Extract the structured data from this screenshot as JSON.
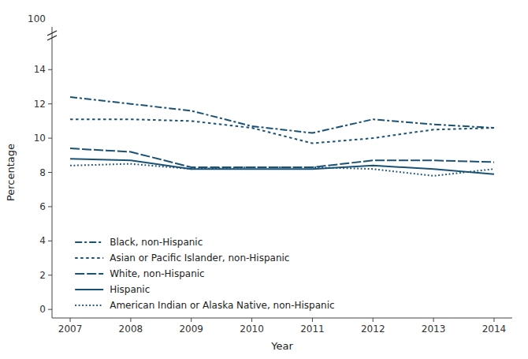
{
  "chart_data": {
    "type": "line",
    "xlabel": "Year",
    "ylabel": "Percentage",
    "x": [
      2007,
      2008,
      2009,
      2010,
      2011,
      2012,
      2013,
      2014
    ],
    "series": [
      {
        "name": "Black, non-Hispanic",
        "color": "#1a5276",
        "line_style": "dash-dot",
        "values": [
          12.4,
          12.0,
          11.6,
          10.7,
          10.3,
          11.1,
          10.8,
          10.6
        ]
      },
      {
        "name": "Asian or Pacific Islander, non-Hispanic",
        "color": "#1a5276",
        "line_style": "short-dash",
        "values": [
          11.1,
          11.1,
          11.0,
          10.6,
          9.7,
          10.0,
          10.5,
          10.6
        ]
      },
      {
        "name": "White, non-Hispanic",
        "color": "#1a5276",
        "line_style": "long-dash",
        "values": [
          9.4,
          9.2,
          8.3,
          8.3,
          8.3,
          8.7,
          8.7,
          8.6
        ]
      },
      {
        "name": "Hispanic",
        "color": "#1a5276",
        "line_style": "solid",
        "values": [
          8.8,
          8.7,
          8.2,
          8.2,
          8.2,
          8.4,
          8.2,
          7.9
        ]
      },
      {
        "name": "American Indian or Alaska Native, non-Hispanic",
        "color": "#1a5276",
        "line_style": "dotted",
        "values": [
          8.4,
          8.5,
          8.2,
          8.3,
          8.3,
          8.2,
          7.8,
          8.2
        ]
      }
    ],
    "xlim": [
      2006.7,
      2014.3
    ],
    "xticks": [
      2007,
      2008,
      2009,
      2010,
      2011,
      2012,
      2013,
      2014
    ],
    "ylim": [
      -0.5,
      16.5
    ],
    "yticks": [
      0,
      2,
      4,
      6,
      8,
      10,
      12,
      14
    ],
    "annotations": [
      {
        "text": "100"
      }
    ],
    "legend": "lower left",
    "grid": false
  }
}
